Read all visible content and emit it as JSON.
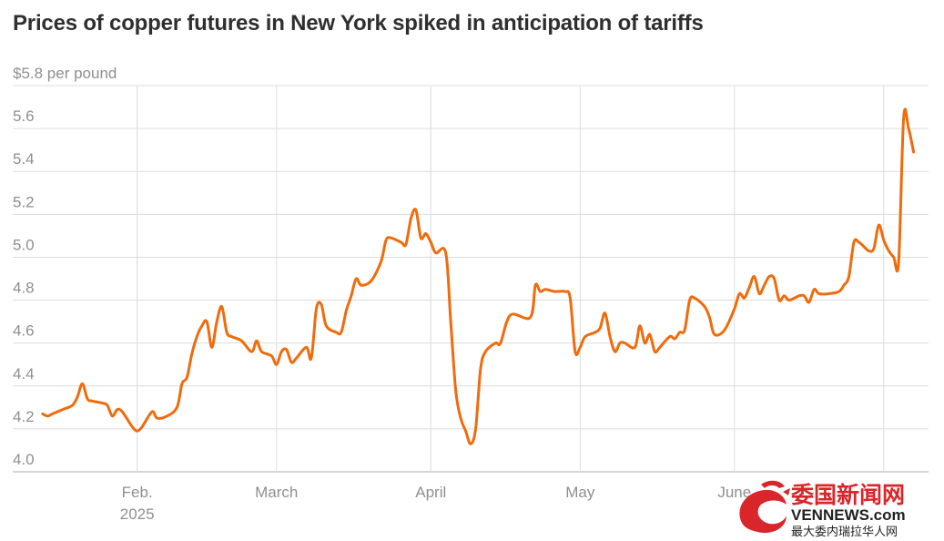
{
  "title": "Prices of copper futures in New York spiked in anticipation of tariffs",
  "watermark": {
    "title": "委国新闻网",
    "site": "VENNEWS.com",
    "tagline": "最大委内瑞拉华人网"
  },
  "chart_data": {
    "type": "line",
    "title": "Prices of copper futures in New York spiked in anticipation of tariffs",
    "unit_label": "$5.8 per pound",
    "xlabel": "",
    "ylabel": "",
    "ylim": [
      4.0,
      5.8
    ],
    "y_ticks": [
      {
        "value": 5.8,
        "label": "$5.8 per pound"
      },
      {
        "value": 5.6,
        "label": "5.6"
      },
      {
        "value": 5.4,
        "label": "5.4"
      },
      {
        "value": 5.2,
        "label": "5.2"
      },
      {
        "value": 5.0,
        "label": "5.0"
      },
      {
        "value": 4.8,
        "label": "4.8"
      },
      {
        "value": 4.6,
        "label": "4.6"
      },
      {
        "value": 4.4,
        "label": "4.4"
      },
      {
        "value": 4.2,
        "label": "4.2"
      },
      {
        "value": 4.0,
        "label": "4.0"
      }
    ],
    "xlim": [
      "2025-01-07",
      "2025-07-10"
    ],
    "x_ticks": [
      {
        "date": "2025-02-01",
        "label": "Feb.",
        "sublabel": "2025"
      },
      {
        "date": "2025-03-01",
        "label": "March",
        "sublabel": ""
      },
      {
        "date": "2025-04-01",
        "label": "April",
        "sublabel": ""
      },
      {
        "date": "2025-05-01",
        "label": "May",
        "sublabel": ""
      },
      {
        "date": "2025-06-01",
        "label": "June",
        "sublabel": ""
      },
      {
        "date": "2025-07-01",
        "label": "",
        "sublabel": ""
      }
    ],
    "grid": true,
    "colors": {
      "line": "#ef6b0c",
      "grid": "#dcdcdc",
      "axis": "#c8c8c8",
      "text": "#8f8f8f",
      "title": "#2f2f2f"
    },
    "series": [
      {
        "points": [
          [
            "2025-01-13",
            4.27
          ],
          [
            "2025-01-14",
            4.26
          ],
          [
            "2025-01-15",
            4.27
          ],
          [
            "2025-01-17",
            4.29
          ],
          [
            "2025-01-19",
            4.31
          ],
          [
            "2025-01-20",
            4.35
          ],
          [
            "2025-01-21",
            4.41
          ],
          [
            "2025-01-22",
            4.34
          ],
          [
            "2025-01-23",
            4.33
          ],
          [
            "2025-01-25",
            4.32
          ],
          [
            "2025-01-26",
            4.31
          ],
          [
            "2025-01-27",
            4.26
          ],
          [
            "2025-01-28",
            4.29
          ],
          [
            "2025-01-29",
            4.28
          ],
          [
            "2025-01-31",
            4.21
          ],
          [
            "2025-02-01",
            4.19
          ],
          [
            "2025-02-02",
            4.21
          ],
          [
            "2025-02-04",
            4.28
          ],
          [
            "2025-02-05",
            4.25
          ],
          [
            "2025-02-07",
            4.26
          ],
          [
            "2025-02-09",
            4.3
          ],
          [
            "2025-02-10",
            4.41
          ],
          [
            "2025-02-11",
            4.44
          ],
          [
            "2025-02-12",
            4.55
          ],
          [
            "2025-02-13",
            4.63
          ],
          [
            "2025-02-14",
            4.68
          ],
          [
            "2025-02-15",
            4.7
          ],
          [
            "2025-02-16",
            4.58
          ],
          [
            "2025-02-17",
            4.7
          ],
          [
            "2025-02-18",
            4.77
          ],
          [
            "2025-02-19",
            4.65
          ],
          [
            "2025-02-20",
            4.63
          ],
          [
            "2025-02-22",
            4.61
          ],
          [
            "2025-02-24",
            4.56
          ],
          [
            "2025-02-25",
            4.61
          ],
          [
            "2025-02-26",
            4.56
          ],
          [
            "2025-02-28",
            4.54
          ],
          [
            "2025-03-01",
            4.5
          ],
          [
            "2025-03-02",
            4.56
          ],
          [
            "2025-03-03",
            4.57
          ],
          [
            "2025-03-04",
            4.51
          ],
          [
            "2025-03-05",
            4.53
          ],
          [
            "2025-03-07",
            4.58
          ],
          [
            "2025-03-08",
            4.53
          ],
          [
            "2025-03-09",
            4.76
          ],
          [
            "2025-03-10",
            4.78
          ],
          [
            "2025-03-11",
            4.68
          ],
          [
            "2025-03-13",
            4.65
          ],
          [
            "2025-03-14",
            4.65
          ],
          [
            "2025-03-15",
            4.75
          ],
          [
            "2025-03-16",
            4.82
          ],
          [
            "2025-03-17",
            4.9
          ],
          [
            "2025-03-18",
            4.87
          ],
          [
            "2025-03-20",
            4.89
          ],
          [
            "2025-03-22",
            4.98
          ],
          [
            "2025-03-23",
            5.08
          ],
          [
            "2025-03-24",
            5.09
          ],
          [
            "2025-03-26",
            5.07
          ],
          [
            "2025-03-27",
            5.06
          ],
          [
            "2025-03-28",
            5.18
          ],
          [
            "2025-03-29",
            5.22
          ],
          [
            "2025-03-30",
            5.09
          ],
          [
            "2025-03-31",
            5.11
          ],
          [
            "2025-04-01",
            5.07
          ],
          [
            "2025-04-02",
            5.02
          ],
          [
            "2025-04-04",
            5.02
          ],
          [
            "2025-04-05",
            4.7
          ],
          [
            "2025-04-06",
            4.38
          ],
          [
            "2025-04-07",
            4.25
          ],
          [
            "2025-04-08",
            4.19
          ],
          [
            "2025-04-09",
            4.13
          ],
          [
            "2025-04-10",
            4.2
          ],
          [
            "2025-04-11",
            4.48
          ],
          [
            "2025-04-12",
            4.56
          ],
          [
            "2025-04-14",
            4.6
          ],
          [
            "2025-04-15",
            4.6
          ],
          [
            "2025-04-17",
            4.73
          ],
          [
            "2025-04-21",
            4.72
          ],
          [
            "2025-04-22",
            4.87
          ],
          [
            "2025-04-23",
            4.84
          ],
          [
            "2025-04-24",
            4.85
          ],
          [
            "2025-04-26",
            4.84
          ],
          [
            "2025-04-28",
            4.84
          ],
          [
            "2025-04-29",
            4.81
          ],
          [
            "2025-04-30",
            4.56
          ],
          [
            "2025-05-01",
            4.58
          ],
          [
            "2025-05-02",
            4.63
          ],
          [
            "2025-05-04",
            4.65
          ],
          [
            "2025-05-05",
            4.67
          ],
          [
            "2025-05-06",
            4.74
          ],
          [
            "2025-05-07",
            4.63
          ],
          [
            "2025-05-08",
            4.56
          ],
          [
            "2025-05-09",
            4.6
          ],
          [
            "2025-05-10",
            4.6
          ],
          [
            "2025-05-12",
            4.58
          ],
          [
            "2025-05-13",
            4.68
          ],
          [
            "2025-05-14",
            4.6
          ],
          [
            "2025-05-15",
            4.64
          ],
          [
            "2025-05-16",
            4.56
          ],
          [
            "2025-05-17",
            4.58
          ],
          [
            "2025-05-19",
            4.63
          ],
          [
            "2025-05-20",
            4.62
          ],
          [
            "2025-05-21",
            4.65
          ],
          [
            "2025-05-22",
            4.66
          ],
          [
            "2025-05-23",
            4.8
          ],
          [
            "2025-05-24",
            4.81
          ],
          [
            "2025-05-26",
            4.77
          ],
          [
            "2025-05-27",
            4.72
          ],
          [
            "2025-05-28",
            4.64
          ],
          [
            "2025-05-30",
            4.66
          ],
          [
            "2025-06-01",
            4.76
          ],
          [
            "2025-06-02",
            4.83
          ],
          [
            "2025-06-03",
            4.81
          ],
          [
            "2025-06-04",
            4.86
          ],
          [
            "2025-06-05",
            4.91
          ],
          [
            "2025-06-06",
            4.83
          ],
          [
            "2025-06-07",
            4.87
          ],
          [
            "2025-06-08",
            4.91
          ],
          [
            "2025-06-09",
            4.9
          ],
          [
            "2025-06-10",
            4.8
          ],
          [
            "2025-06-11",
            4.82
          ],
          [
            "2025-06-12",
            4.8
          ],
          [
            "2025-06-14",
            4.82
          ],
          [
            "2025-06-15",
            4.82
          ],
          [
            "2025-06-16",
            4.79
          ],
          [
            "2025-06-17",
            4.85
          ],
          [
            "2025-06-18",
            4.83
          ],
          [
            "2025-06-20",
            4.83
          ],
          [
            "2025-06-22",
            4.84
          ],
          [
            "2025-06-23",
            4.87
          ],
          [
            "2025-06-24",
            4.91
          ],
          [
            "2025-06-25",
            5.07
          ],
          [
            "2025-06-26",
            5.07
          ],
          [
            "2025-06-27",
            5.05
          ],
          [
            "2025-06-28",
            5.03
          ],
          [
            "2025-06-29",
            5.04
          ],
          [
            "2025-06-30",
            5.15
          ],
          [
            "2025-07-01",
            5.08
          ],
          [
            "2025-07-02",
            5.03
          ],
          [
            "2025-07-03",
            5.0
          ],
          [
            "2025-07-04",
            4.98
          ],
          [
            "2025-07-05",
            5.65
          ],
          [
            "2025-07-06",
            5.6
          ],
          [
            "2025-07-07",
            5.49
          ]
        ]
      }
    ]
  }
}
